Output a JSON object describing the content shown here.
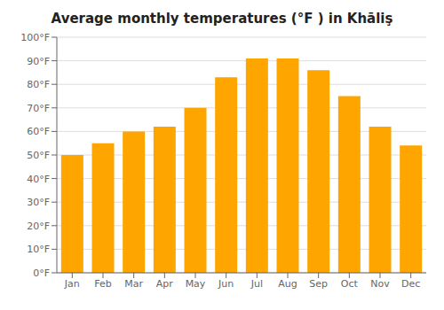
{
  "chart_data": {
    "type": "bar",
    "title": "Average monthly temperatures (°F ) in Khāliş",
    "categories": [
      "Jan",
      "Feb",
      "Mar",
      "Apr",
      "May",
      "Jun",
      "Jul",
      "Aug",
      "Sep",
      "Oct",
      "Nov",
      "Dec"
    ],
    "values": [
      50,
      55,
      60,
      62,
      70,
      83,
      91,
      91,
      86,
      75,
      62,
      54
    ],
    "color": "#ffa500",
    "ylim": [
      0,
      100
    ],
    "yticks": [
      {
        "value": 0,
        "label": "0°F"
      },
      {
        "value": 10,
        "label": "10°F"
      },
      {
        "value": 20,
        "label": "20°F"
      },
      {
        "value": 30,
        "label": "30°F"
      },
      {
        "value": 40,
        "label": "40°F"
      },
      {
        "value": 50,
        "label": "50°F"
      },
      {
        "value": 60,
        "label": "60°F"
      },
      {
        "value": 70,
        "label": "70°F"
      },
      {
        "value": 80,
        "label": "80°F"
      },
      {
        "value": 90,
        "label": "90°F"
      },
      {
        "value": 100,
        "label": "100°F"
      }
    ],
    "grid": true
  }
}
